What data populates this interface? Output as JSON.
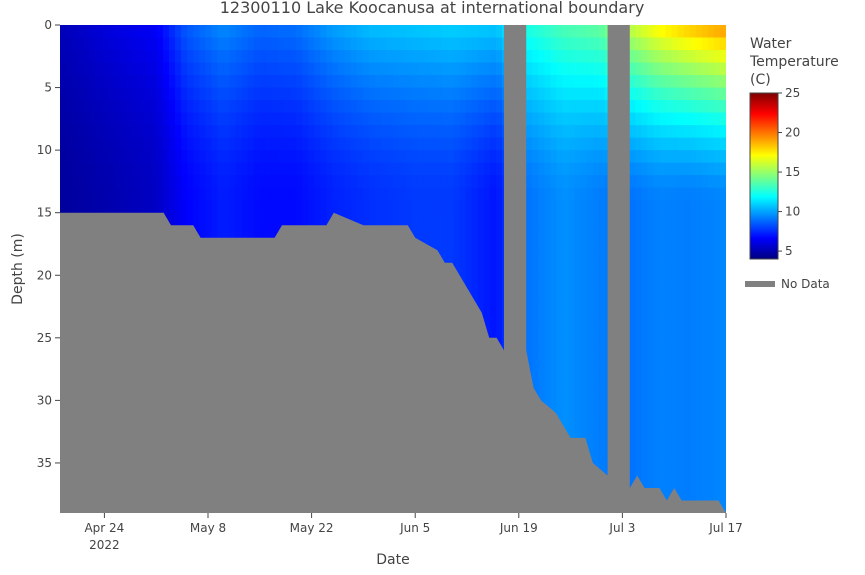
{
  "chart_data": {
    "type": "heatmap",
    "title": "12300110 Lake Koocanusa at international boundary",
    "xlabel": "Date",
    "ylabel": "Depth (m)",
    "x_range": [
      "2022-04-18",
      "2022-07-17"
    ],
    "x_ticks": [
      {
        "date": "2022-04-24",
        "label": "Apr 24",
        "sublabel": "2022"
      },
      {
        "date": "2022-05-08",
        "label": "May 8",
        "sublabel": ""
      },
      {
        "date": "2022-05-22",
        "label": "May 22",
        "sublabel": ""
      },
      {
        "date": "2022-06-05",
        "label": "Jun 5",
        "sublabel": ""
      },
      {
        "date": "2022-06-19",
        "label": "Jun 19",
        "sublabel": ""
      },
      {
        "date": "2022-07-03",
        "label": "Jul 3",
        "sublabel": ""
      },
      {
        "date": "2022-07-17",
        "label": "Jul 17",
        "sublabel": ""
      }
    ],
    "y_range": [
      0,
      39
    ],
    "y_reversed": true,
    "y_ticks": [
      0,
      5,
      10,
      15,
      20,
      25,
      30,
      35
    ],
    "colorbar": {
      "title": "Water Temperature (C)",
      "min": 4,
      "max": 25,
      "ticks": [
        5,
        10,
        15,
        20,
        25
      ],
      "colorscale": [
        "#00007f",
        "#0000ff",
        "#007fff",
        "#00ffff",
        "#7fff7f",
        "#ffff00",
        "#ff7f00",
        "#ff0000",
        "#7f0000"
      ]
    },
    "no_data_label": "No Data",
    "no_data_color": "#808080",
    "gaps": [
      {
        "start": "2022-06-17",
        "end": "2022-06-20"
      },
      {
        "start": "2022-07-01",
        "end": "2022-07-04"
      }
    ],
    "bottom_depth_profile": [
      {
        "date": "2022-04-18",
        "depth": 15
      },
      {
        "date": "2022-05-02",
        "depth": 15
      },
      {
        "date": "2022-05-03",
        "depth": 16
      },
      {
        "date": "2022-05-06",
        "depth": 16
      },
      {
        "date": "2022-05-07",
        "depth": 17
      },
      {
        "date": "2022-05-17",
        "depth": 17
      },
      {
        "date": "2022-05-18",
        "depth": 16
      },
      {
        "date": "2022-05-24",
        "depth": 16
      },
      {
        "date": "2022-05-25",
        "depth": 15
      },
      {
        "date": "2022-05-29",
        "depth": 16
      },
      {
        "date": "2022-06-04",
        "depth": 16
      },
      {
        "date": "2022-06-05",
        "depth": 17
      },
      {
        "date": "2022-06-08",
        "depth": 18
      },
      {
        "date": "2022-06-09",
        "depth": 19
      },
      {
        "date": "2022-06-10",
        "depth": 19
      },
      {
        "date": "2022-06-12",
        "depth": 21
      },
      {
        "date": "2022-06-14",
        "depth": 23
      },
      {
        "date": "2022-06-15",
        "depth": 25
      },
      {
        "date": "2022-06-16",
        "depth": 25
      },
      {
        "date": "2022-06-17",
        "depth": 26
      },
      {
        "date": "2022-06-20",
        "depth": 26
      },
      {
        "date": "2022-06-21",
        "depth": 29
      },
      {
        "date": "2022-06-22",
        "depth": 30
      },
      {
        "date": "2022-06-24",
        "depth": 31
      },
      {
        "date": "2022-06-26",
        "depth": 33
      },
      {
        "date": "2022-06-28",
        "depth": 33
      },
      {
        "date": "2022-06-29",
        "depth": 35
      },
      {
        "date": "2022-07-01",
        "depth": 36
      },
      {
        "date": "2022-07-04",
        "depth": 37
      },
      {
        "date": "2022-07-05",
        "depth": 36
      },
      {
        "date": "2022-07-06",
        "depth": 37
      },
      {
        "date": "2022-07-08",
        "depth": 37
      },
      {
        "date": "2022-07-09",
        "depth": 38
      },
      {
        "date": "2022-07-10",
        "depth": 37
      },
      {
        "date": "2022-07-11",
        "depth": 38
      },
      {
        "date": "2022-07-16",
        "depth": 38
      },
      {
        "date": "2022-07-17",
        "depth": 39
      }
    ],
    "temperature_profiles": [
      {
        "date": "2022-04-18",
        "surface": 5.2,
        "bottom": 4.6
      },
      {
        "date": "2022-04-25",
        "surface": 6.0,
        "bottom": 5.0
      },
      {
        "date": "2022-05-01",
        "surface": 6.5,
        "bottom": 5.4
      },
      {
        "date": "2022-05-05",
        "surface": 8.5,
        "bottom": 6.6
      },
      {
        "date": "2022-05-10",
        "surface": 9.5,
        "bottom": 7.2
      },
      {
        "date": "2022-05-15",
        "surface": 8.8,
        "bottom": 6.8
      },
      {
        "date": "2022-05-20",
        "surface": 9.0,
        "bottom": 6.8
      },
      {
        "date": "2022-05-25",
        "surface": 10.0,
        "bottom": 7.3
      },
      {
        "date": "2022-05-30",
        "surface": 10.6,
        "bottom": 7.6
      },
      {
        "date": "2022-06-05",
        "surface": 10.8,
        "bottom": 7.8
      },
      {
        "date": "2022-06-10",
        "surface": 11.0,
        "bottom": 7.8
      },
      {
        "date": "2022-06-16",
        "surface": 10.8,
        "bottom": 7.0
      },
      {
        "date": "2022-06-20",
        "surface": 12.5,
        "bottom": 9.0
      },
      {
        "date": "2022-06-25",
        "surface": 13.5,
        "bottom": 9.6
      },
      {
        "date": "2022-06-30",
        "surface": 14.0,
        "bottom": 9.2
      },
      {
        "date": "2022-07-04",
        "surface": 16.0,
        "bottom": 9.0
      },
      {
        "date": "2022-07-08",
        "surface": 17.5,
        "bottom": 9.3
      },
      {
        "date": "2022-07-12",
        "surface": 18.5,
        "bottom": 9.2
      },
      {
        "date": "2022-07-17",
        "surface": 19.5,
        "bottom": 9.4
      }
    ]
  }
}
